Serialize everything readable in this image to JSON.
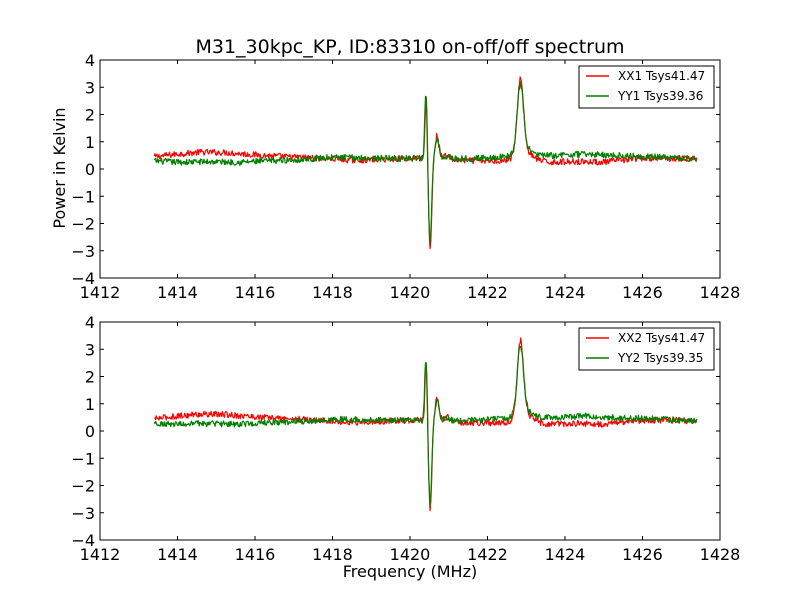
{
  "chart_data": [
    {
      "type": "line",
      "title": "M31_30kpc_KP, ID:83310 on-off/off spectrum",
      "xlabel": "",
      "ylabel": "Power in Kelvin",
      "xlim": [
        1412,
        1428
      ],
      "ylim": [
        -4,
        4
      ],
      "xticks": [
        1412,
        1414,
        1416,
        1418,
        1420,
        1422,
        1424,
        1426,
        1428
      ],
      "yticks": [
        4,
        3,
        2,
        1,
        0,
        -1,
        -2,
        -3,
        -4
      ],
      "ytick_labels": [
        "4",
        "3",
        "2",
        "1",
        "0",
        "−1",
        "−2",
        "−3",
        "−4"
      ],
      "legend_position": "top-right",
      "x_range": [
        1413.4,
        1427.4
      ],
      "series": [
        {
          "name": "XX1 Tsys41.47",
          "color": "#ff0000",
          "baseline": [
            [
              1413.4,
              0.45
            ],
            [
              1414.0,
              0.55
            ],
            [
              1414.6,
              0.62
            ],
            [
              1415.3,
              0.6
            ],
            [
              1416.0,
              0.52
            ],
            [
              1416.8,
              0.45
            ],
            [
              1417.6,
              0.4
            ],
            [
              1418.6,
              0.32
            ],
            [
              1419.5,
              0.37
            ],
            [
              1420.2,
              0.4
            ],
            [
              1421.0,
              0.35
            ],
            [
              1421.6,
              0.3
            ],
            [
              1422.2,
              0.3
            ],
            [
              1423.0,
              0.32
            ],
            [
              1423.6,
              0.25
            ],
            [
              1424.3,
              0.28
            ],
            [
              1425.0,
              0.25
            ],
            [
              1425.8,
              0.38
            ],
            [
              1426.4,
              0.4
            ],
            [
              1427.4,
              0.38
            ]
          ],
          "features": [
            [
              1420.42,
              2.3,
              0.03
            ],
            [
              1420.52,
              -3.35,
              0.04
            ],
            [
              1420.7,
              0.85,
              0.05
            ],
            [
              1420.95,
              0.15,
              0.08
            ],
            [
              1422.85,
              2.75,
              0.08
            ],
            [
              1422.95,
              0.3,
              0.2
            ]
          ],
          "noise": 0.07
        },
        {
          "name": "YY1 Tsys39.36",
          "color": "#008000",
          "baseline": [
            [
              1413.4,
              0.3
            ],
            [
              1414.0,
              0.25
            ],
            [
              1414.8,
              0.27
            ],
            [
              1415.6,
              0.25
            ],
            [
              1416.4,
              0.3
            ],
            [
              1417.2,
              0.35
            ],
            [
              1418.0,
              0.43
            ],
            [
              1419.0,
              0.4
            ],
            [
              1420.2,
              0.38
            ],
            [
              1421.0,
              0.37
            ],
            [
              1421.8,
              0.4
            ],
            [
              1422.5,
              0.45
            ],
            [
              1423.2,
              0.48
            ],
            [
              1423.8,
              0.5
            ],
            [
              1424.5,
              0.55
            ],
            [
              1425.2,
              0.5
            ],
            [
              1426.0,
              0.47
            ],
            [
              1426.8,
              0.4
            ],
            [
              1427.4,
              0.38
            ]
          ],
          "features": [
            [
              1420.41,
              2.35,
              0.03
            ],
            [
              1420.52,
              -3.0,
              0.04
            ],
            [
              1420.7,
              0.72,
              0.05
            ],
            [
              1420.95,
              0.1,
              0.08
            ],
            [
              1422.85,
              2.45,
              0.08
            ],
            [
              1422.95,
              0.25,
              0.2
            ]
          ],
          "noise": 0.07
        }
      ]
    },
    {
      "type": "line",
      "title": "",
      "xlabel": "Frequency (MHz)",
      "ylabel": "",
      "xlim": [
        1412,
        1428
      ],
      "ylim": [
        -4,
        4
      ],
      "xticks": [
        1412,
        1414,
        1416,
        1418,
        1420,
        1422,
        1424,
        1426,
        1428
      ],
      "yticks": [
        4,
        3,
        2,
        1,
        0,
        -1,
        -2,
        -3,
        -4
      ],
      "ytick_labels": [
        "4",
        "3",
        "2",
        "1",
        "0",
        "−1",
        "−2",
        "−3",
        "−4"
      ],
      "legend_position": "top-right",
      "x_range": [
        1413.4,
        1427.4
      ],
      "series": [
        {
          "name": "XX2 Tsys41.47",
          "color": "#ff0000",
          "baseline": [
            [
              1413.4,
              0.45
            ],
            [
              1414.0,
              0.55
            ],
            [
              1414.6,
              0.62
            ],
            [
              1415.3,
              0.6
            ],
            [
              1416.0,
              0.52
            ],
            [
              1416.8,
              0.45
            ],
            [
              1417.6,
              0.4
            ],
            [
              1418.6,
              0.32
            ],
            [
              1419.5,
              0.37
            ],
            [
              1420.2,
              0.4
            ],
            [
              1421.0,
              0.35
            ],
            [
              1421.6,
              0.3
            ],
            [
              1422.2,
              0.3
            ],
            [
              1423.0,
              0.32
            ],
            [
              1423.6,
              0.25
            ],
            [
              1424.3,
              0.28
            ],
            [
              1425.0,
              0.25
            ],
            [
              1425.8,
              0.38
            ],
            [
              1426.4,
              0.4
            ],
            [
              1427.4,
              0.38
            ]
          ],
          "features": [
            [
              1420.42,
              2.3,
              0.03
            ],
            [
              1420.52,
              -3.35,
              0.04
            ],
            [
              1420.7,
              0.85,
              0.05
            ],
            [
              1420.95,
              0.15,
              0.08
            ],
            [
              1422.85,
              2.75,
              0.08
            ],
            [
              1422.95,
              0.3,
              0.2
            ]
          ],
          "noise": 0.07
        },
        {
          "name": "YY2 Tsys39.35",
          "color": "#008000",
          "baseline": [
            [
              1413.4,
              0.3
            ],
            [
              1414.0,
              0.25
            ],
            [
              1414.8,
              0.27
            ],
            [
              1415.6,
              0.25
            ],
            [
              1416.4,
              0.3
            ],
            [
              1417.2,
              0.35
            ],
            [
              1418.0,
              0.43
            ],
            [
              1419.0,
              0.4
            ],
            [
              1420.2,
              0.38
            ],
            [
              1421.0,
              0.37
            ],
            [
              1421.8,
              0.4
            ],
            [
              1422.5,
              0.45
            ],
            [
              1423.2,
              0.48
            ],
            [
              1423.8,
              0.5
            ],
            [
              1424.5,
              0.55
            ],
            [
              1425.2,
              0.5
            ],
            [
              1426.0,
              0.47
            ],
            [
              1426.8,
              0.4
            ],
            [
              1427.4,
              0.38
            ]
          ],
          "features": [
            [
              1420.41,
              2.35,
              0.03
            ],
            [
              1420.52,
              -3.0,
              0.04
            ],
            [
              1420.7,
              0.72,
              0.05
            ],
            [
              1420.95,
              0.1,
              0.08
            ],
            [
              1422.85,
              2.45,
              0.08
            ],
            [
              1422.95,
              0.25,
              0.2
            ]
          ],
          "noise": 0.07
        }
      ]
    }
  ]
}
